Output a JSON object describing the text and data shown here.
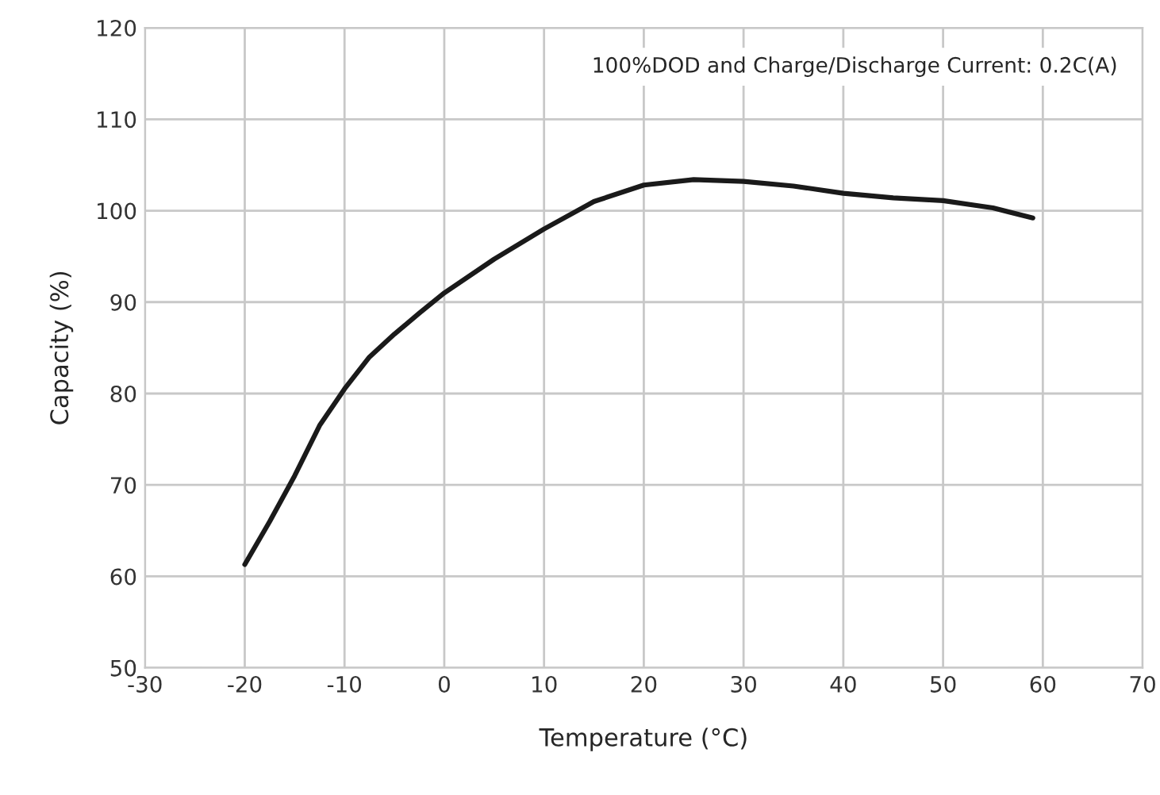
{
  "chart_data": {
    "type": "line",
    "xlabel": "Temperature (°C)",
    "ylabel": "Capacity (%)",
    "annotations": [
      "100%DOD and Charge/Discharge Current: 0.2C(A)"
    ],
    "series": [
      {
        "color": "#1a1a1a",
        "x": [
          -20,
          -17.5,
          -15,
          -12.5,
          -10,
          -7.5,
          -5,
          -2.5,
          0,
          5,
          10,
          15,
          20,
          25,
          30,
          35,
          40,
          45,
          50,
          55,
          59
        ],
        "values": [
          61.3,
          66,
          71,
          76.5,
          80.5,
          84,
          86.5,
          88.8,
          91,
          94.7,
          98,
          101,
          102.8,
          103.4,
          103.2,
          102.7,
          101.9,
          101.4,
          101.1,
          100.3,
          99.2
        ]
      }
    ],
    "xlim": [
      -30,
      70
    ],
    "xticks": [
      -30,
      -20,
      -10,
      0,
      10,
      20,
      30,
      40,
      50,
      60,
      70
    ],
    "ylim": [
      50,
      120
    ],
    "yticks": [
      50,
      60,
      70,
      80,
      90,
      100,
      110,
      120
    ],
    "grid": true,
    "line_style": "solid",
    "marker": "none"
  }
}
